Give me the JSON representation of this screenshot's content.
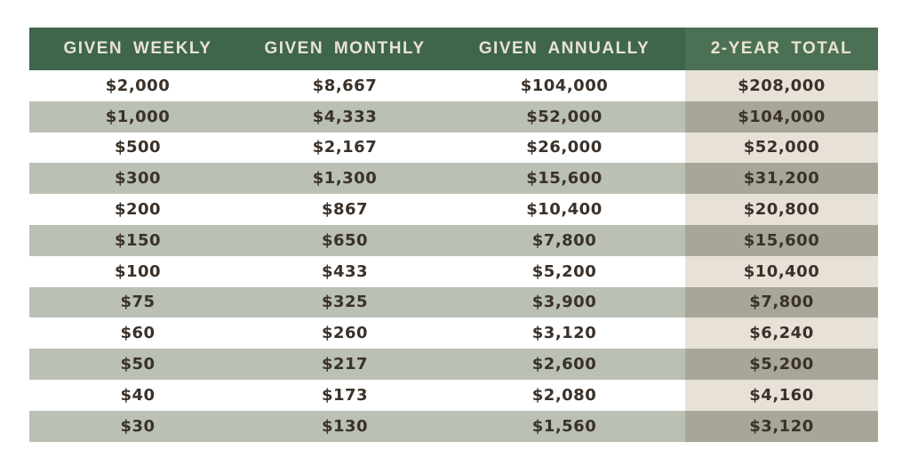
{
  "chart_data": {
    "type": "table",
    "columns": [
      "GIVEN WEEKLY",
      "GIVEN MONTHLY",
      "GIVEN ANNUALLY",
      "2-YEAR TOTAL"
    ],
    "rows": [
      [
        "$2,000",
        "$8,667",
        "$104,000",
        "$208,000"
      ],
      [
        "$1,000",
        "$4,333",
        "$52,000",
        "$104,000"
      ],
      [
        "$500",
        "$2,167",
        "$26,000",
        "$52,000"
      ],
      [
        "$300",
        "$1,300",
        "$15,600",
        "$31,200"
      ],
      [
        "$200",
        "$867",
        "$10,400",
        "$20,800"
      ],
      [
        "$150",
        "$650",
        "$7,800",
        "$15,600"
      ],
      [
        "$100",
        "$433",
        "$5,200",
        "$10,400"
      ],
      [
        "$75",
        "$325",
        "$3,900",
        "$7,800"
      ],
      [
        "$60",
        "$260",
        "$3,120",
        "$6,240"
      ],
      [
        "$50",
        "$217",
        "$2,600",
        "$5,200"
      ],
      [
        "$40",
        "$173",
        "$2,080",
        "$4,160"
      ],
      [
        "$30",
        "$130",
        "$1,560",
        "$3,120"
      ]
    ],
    "highlight_column": "2-YEAR TOTAL",
    "layout": {
      "striped": true,
      "header_position": "top"
    }
  },
  "colors": {
    "header_bg": "#3f654a",
    "header_bg_total": "#4c7053",
    "header_text": "#e7e3d2",
    "row_even_bg": "#ffffff",
    "row_odd_bg": "#bac0b3",
    "total_col_on_white": "#e7e1d8",
    "total_col_on_sage": "#a8a699",
    "cell_text": "#3a3129",
    "page_bg": "#ffffff"
  }
}
